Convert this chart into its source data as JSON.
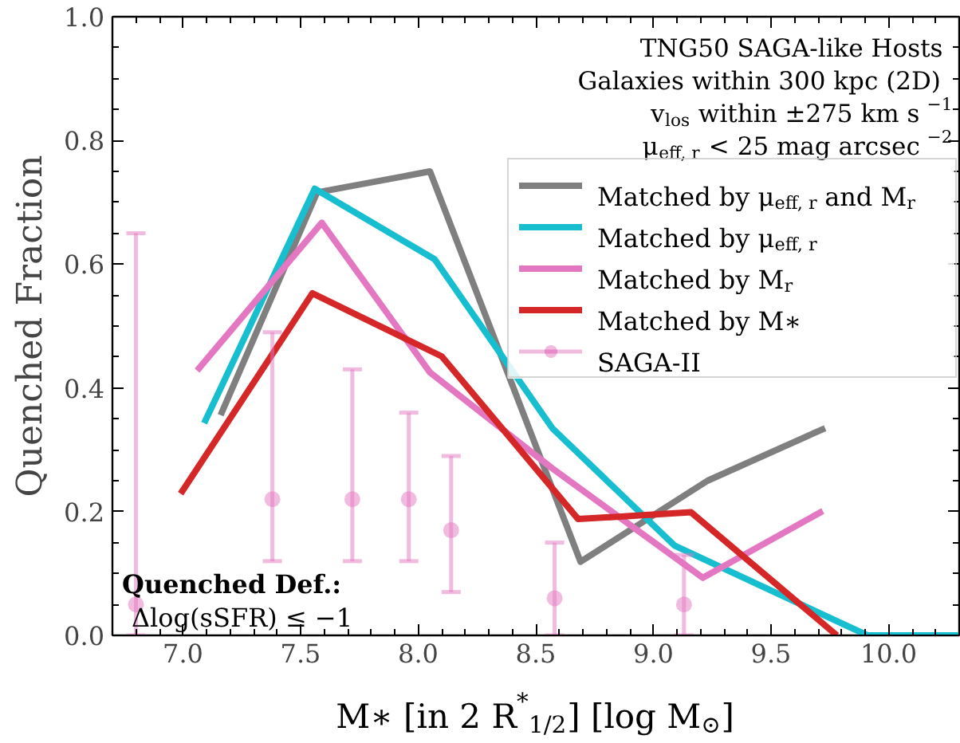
{
  "chart_data": {
    "type": "line",
    "xlabel": "M∗ [in 2 R$^{*}$$_{1/2}$] [log M$_{⊙}$]",
    "ylabel": "Quenched Fraction",
    "xlim": [
      6.7,
      10.3
    ],
    "xticks": [
      {
        "value": 7.0,
        "label": "7.0"
      },
      {
        "value": 7.5,
        "label": "7.5"
      },
      {
        "value": 8.0,
        "label": "8.0"
      },
      {
        "value": 8.5,
        "label": "8.5"
      },
      {
        "value": 9.0,
        "label": "9.0"
      },
      {
        "value": 9.5,
        "label": "9.5"
      },
      {
        "value": 10.0,
        "label": "10.0"
      }
    ],
    "ylim": [
      0,
      1
    ],
    "yticks": [
      {
        "value": 0,
        "label": "0.0"
      },
      {
        "value": 0.2,
        "label": "0.2"
      },
      {
        "value": 0.4,
        "label": "0.4"
      },
      {
        "value": 0.6,
        "label": "0.6"
      },
      {
        "value": 0.8,
        "label": "0.8"
      },
      {
        "value": 1.0,
        "label": "1.0"
      }
    ],
    "grid": false,
    "legend": "top right",
    "series": [
      {
        "name": "Matched by μ$_{eff, r}$ and M$_{r}$",
        "color": "#7f7f7f",
        "x": [
          7.16,
          7.57,
          8.05,
          8.69,
          9.23,
          9.73
        ],
        "values": [
          0.356,
          0.716,
          0.75,
          0.119,
          0.25,
          0.335
        ]
      },
      {
        "name": "Matched by μ$_{eff, r}$",
        "color": "#17becf",
        "x": [
          7.09,
          7.56,
          8.07,
          8.57,
          9.09,
          9.91,
          10.3
        ],
        "values": [
          0.343,
          0.722,
          0.608,
          0.335,
          0.145,
          0.0,
          0.0
        ]
      },
      {
        "name": "Matched by M$_{r}$",
        "color": "#e377c2",
        "x": [
          7.06,
          7.59,
          8.05,
          8.57,
          9.21,
          9.72
        ],
        "values": [
          0.428,
          0.667,
          0.425,
          0.27,
          0.093,
          0.201
        ]
      },
      {
        "name": "Matched by M∗",
        "color": "#d62728",
        "x": [
          6.99,
          7.55,
          8.1,
          8.68,
          9.16,
          9.78
        ],
        "values": [
          0.229,
          0.553,
          0.451,
          0.188,
          0.199,
          0.0
        ]
      },
      {
        "name": "SAGA-II",
        "type": "scatter",
        "marker": "circle",
        "color": "#e377c2",
        "x": [
          6.8,
          7.38,
          7.72,
          7.96,
          8.14,
          8.58,
          9.13
        ],
        "values": [
          0.05,
          0.22,
          0.22,
          0.22,
          0.17,
          0.06,
          0.05
        ],
        "errors": [
          [
            0,
            0.65
          ],
          [
            0.12,
            0.49
          ],
          [
            0.12,
            0.43
          ],
          [
            0.12,
            0.36
          ],
          [
            0.07,
            0.29
          ],
          [
            0,
            0.15
          ],
          [
            0,
            0.13
          ]
        ]
      }
    ],
    "annotations": [
      "TNG50 SAGA-like Hosts",
      "Galaxies within 300 kpc (2D)",
      "v$_{los}$ within ±275 km s$^{−1}$",
      "μ$_{eff, r}$ < 25 mag arcsec$^{−2}$",
      "Quenched Def.:",
      "Δlog(sSFR) ≤ −1"
    ]
  }
}
